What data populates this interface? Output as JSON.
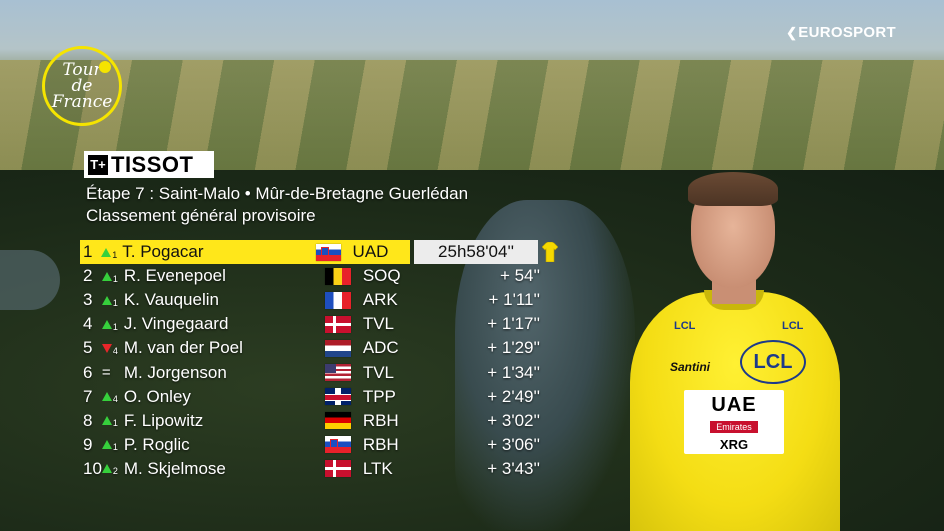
{
  "broadcast": {
    "channel": "EUROSPORT",
    "race_logo_text": "Tour de France",
    "sponsor": "TISSOT"
  },
  "header": {
    "stage": "Étape 7 : Saint-Malo • Mûr-de-Bretagne Guerlédan",
    "subtitle": "Classement général provisoire"
  },
  "standings": [
    {
      "pos": "1",
      "move": "up",
      "move_n": "1",
      "rider": "T. Pogacar",
      "flag": "si",
      "team": "UAD",
      "time": "25h58'04''",
      "leader": true
    },
    {
      "pos": "2",
      "move": "up",
      "move_n": "1",
      "rider": "R. Evenepoel",
      "flag": "be",
      "team": "SOQ",
      "time": "+ 54''"
    },
    {
      "pos": "3",
      "move": "up",
      "move_n": "1",
      "rider": "K. Vauquelin",
      "flag": "fr",
      "team": "ARK",
      "time": "+ 1'11''"
    },
    {
      "pos": "4",
      "move": "up",
      "move_n": "1",
      "rider": "J. Vingegaard",
      "flag": "dk",
      "team": "TVL",
      "time": "+ 1'17''"
    },
    {
      "pos": "5",
      "move": "down",
      "move_n": "4",
      "rider": "M. van der Poel",
      "flag": "nl",
      "team": "ADC",
      "time": "+ 1'29''"
    },
    {
      "pos": "6",
      "move": "eq",
      "move_n": "",
      "rider": "M. Jorgenson",
      "flag": "us",
      "team": "TVL",
      "time": "+ 1'34''"
    },
    {
      "pos": "7",
      "move": "up",
      "move_n": "4",
      "rider": "O. Onley",
      "flag": "gb",
      "team": "TPP",
      "time": "+ 2'49''"
    },
    {
      "pos": "8",
      "move": "up",
      "move_n": "1",
      "rider": "F. Lipowitz",
      "flag": "de",
      "team": "RBH",
      "time": "+ 3'02''"
    },
    {
      "pos": "9",
      "move": "up",
      "move_n": "1",
      "rider": "P. Roglic",
      "flag": "si",
      "team": "RBH",
      "time": "+ 3'06''"
    },
    {
      "pos": "10",
      "move": "up",
      "move_n": "2",
      "rider": "M. Skjelmose",
      "flag": "dk",
      "team": "LTK",
      "time": "+ 3'43''"
    }
  ],
  "jersey_sponsors": {
    "team_main": "UAE",
    "team_sub": "Emirates",
    "team_brand": "XRG",
    "lcl": "LCL",
    "kit": "Santini"
  },
  "colors": {
    "leader_yellow": "#ffe71a",
    "up_arrow": "#36d03c",
    "down_arrow": "#e8262a"
  }
}
